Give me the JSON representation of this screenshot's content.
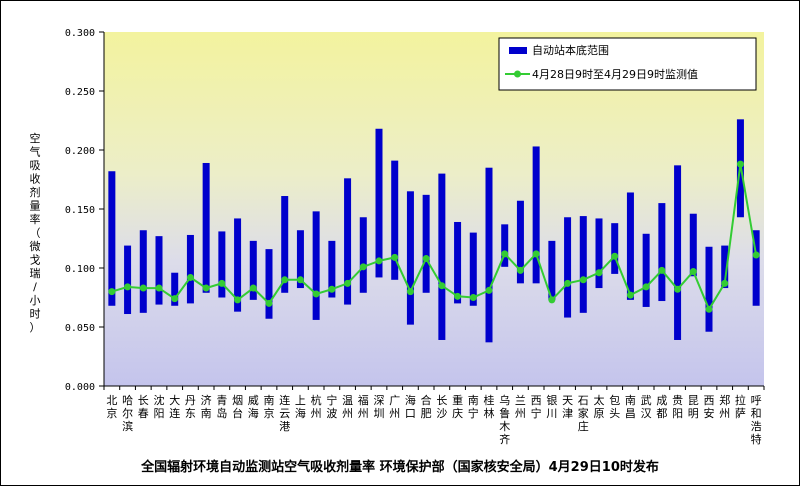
{
  "chart_data": {
    "type": "bar",
    "title": "全国辐射环境自动监测站空气吸收剂量率 环境保护部（国家核安全局）4月29日10时发布",
    "ylabel": "空气吸收剂量率（微戈瑞/小时）",
    "ylim": [
      0,
      0.3
    ],
    "yticks": [
      "0.000",
      "0.050",
      "0.100",
      "0.150",
      "0.200",
      "0.250",
      "0.300"
    ],
    "grid": false,
    "legend": "top-right",
    "categories": [
      "北京",
      "哈尔滨",
      "长春",
      "沈阳",
      "大连",
      "丹东",
      "济南",
      "青岛",
      "烟台",
      "威海",
      "南京",
      "连云港",
      "上海",
      "杭州",
      "宁波",
      "温州",
      "福州",
      "深圳",
      "广州",
      "海口",
      "合肥",
      "长沙",
      "重庆",
      "南宁",
      "桂林",
      "乌鲁木齐",
      "兰州",
      "西宁",
      "银川",
      "天津",
      "石家庄",
      "太原",
      "包头",
      "南昌",
      "武汉",
      "成都",
      "贵阳",
      "昆明",
      "西安",
      "郑州",
      "拉萨",
      "呼和浩特"
    ],
    "series": [
      {
        "name": "自动站本底范围",
        "kind": "range-bar",
        "color": "#0000cc",
        "low": [
          0.068,
          0.061,
          0.062,
          0.069,
          0.068,
          0.07,
          0.079,
          0.075,
          0.063,
          0.073,
          0.057,
          0.079,
          0.083,
          0.056,
          0.075,
          0.069,
          0.079,
          0.092,
          0.09,
          0.052,
          0.079,
          0.039,
          0.07,
          0.068,
          0.037,
          0.101,
          0.087,
          0.087,
          0.073,
          0.058,
          0.062,
          0.083,
          0.095,
          0.073,
          0.067,
          0.072,
          0.039,
          0.093,
          0.046,
          0.083,
          0.143,
          0.068
        ],
        "high": [
          0.182,
          0.119,
          0.132,
          0.127,
          0.096,
          0.128,
          0.189,
          0.131,
          0.142,
          0.123,
          0.116,
          0.161,
          0.132,
          0.148,
          0.123,
          0.176,
          0.143,
          0.218,
          0.191,
          0.165,
          0.162,
          0.18,
          0.139,
          0.13,
          0.185,
          0.137,
          0.157,
          0.203,
          0.123,
          0.143,
          0.144,
          0.142,
          0.138,
          0.164,
          0.129,
          0.155,
          0.187,
          0.146,
          0.118,
          0.119,
          0.226,
          0.132
        ]
      },
      {
        "name": "4月28日9时至4月29日9时监测值",
        "kind": "line",
        "color": "#33cc33",
        "values": [
          0.08,
          0.084,
          0.083,
          0.083,
          0.074,
          0.092,
          0.083,
          0.087,
          0.073,
          0.083,
          0.07,
          0.09,
          0.09,
          0.078,
          0.082,
          0.087,
          0.101,
          0.106,
          0.109,
          0.08,
          0.108,
          0.085,
          0.076,
          0.075,
          0.081,
          0.112,
          0.098,
          0.112,
          0.073,
          0.087,
          0.09,
          0.096,
          0.11,
          0.077,
          0.084,
          0.098,
          0.082,
          0.097,
          0.065,
          0.087,
          0.188,
          0.111
        ]
      }
    ]
  }
}
